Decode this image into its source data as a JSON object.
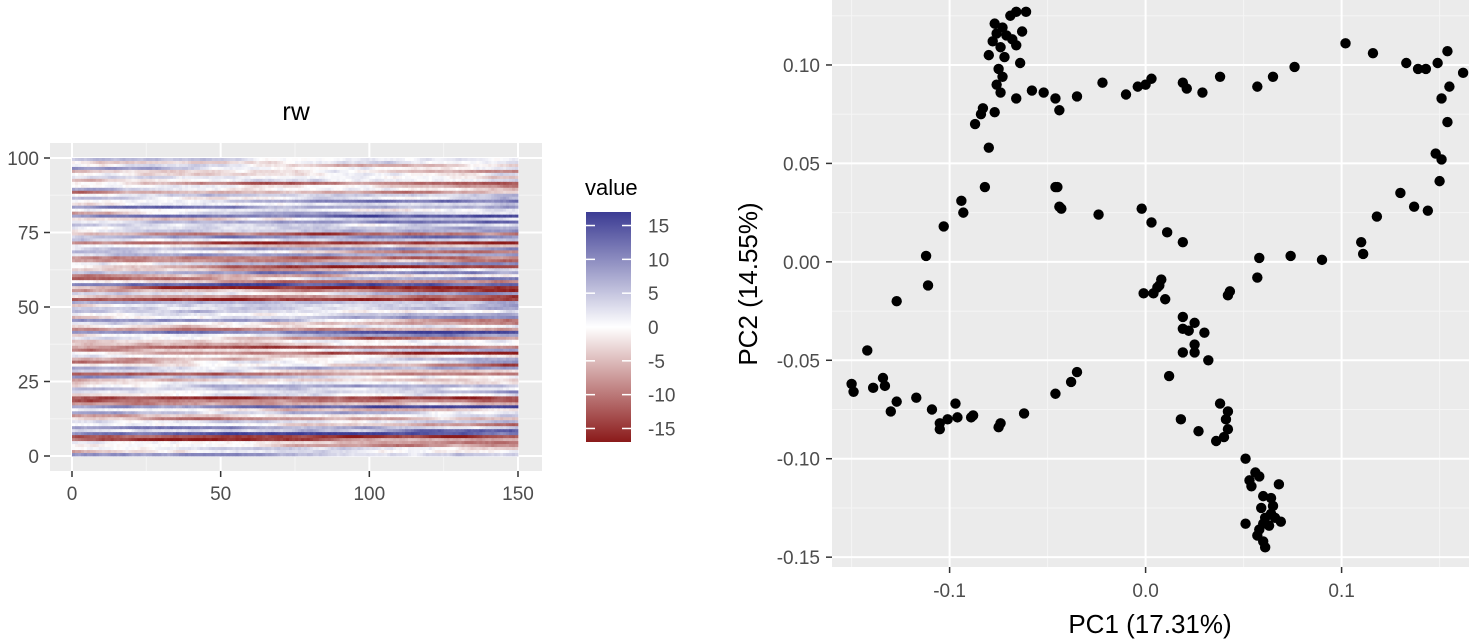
{
  "chart_data": [
    {
      "type": "heatmap",
      "title": "rw",
      "xlabel": "",
      "ylabel": "",
      "xlim": [
        0,
        150
      ],
      "ylim": [
        0,
        100
      ],
      "x_ticks": [
        0,
        50,
        100,
        150
      ],
      "y_ticks": [
        0,
        25,
        50,
        75,
        100
      ],
      "rows": 100,
      "columns": 150,
      "value_range": [
        -17,
        17
      ],
      "legend": {
        "title": "value",
        "ticks": [
          15,
          10,
          5,
          0,
          -5,
          -10,
          -15
        ],
        "colors": {
          "high": "#3b3b93",
          "mid": "#ffffff",
          "low": "#8b1a1a"
        },
        "placement": "right"
      },
      "grid": true,
      "panel_background": "#ebebeb"
    },
    {
      "type": "scatter",
      "xlabel": "PC1 (17.31%)",
      "ylabel": "PC2 (14.55%)",
      "xlim": [
        -0.16,
        0.165
      ],
      "ylim": [
        -0.155,
        0.133
      ],
      "x_ticks": [
        -0.1,
        0.0,
        0.1
      ],
      "x_tick_labels": [
        "-0.1",
        "0.0",
        "0.1"
      ],
      "y_ticks": [
        0.1,
        0.05,
        0.0,
        -0.05,
        -0.1,
        -0.15
      ],
      "y_tick_labels": [
        "0.10",
        "0.05",
        "0.00",
        "-0.05",
        "-0.10",
        "-0.15"
      ],
      "grid": true,
      "point_color": "#000000",
      "panel_background": "#ebebeb",
      "points": [
        [
          -0.066,
          0.127
        ],
        [
          -0.061,
          0.127
        ],
        [
          -0.069,
          0.125
        ],
        [
          -0.077,
          0.121
        ],
        [
          -0.073,
          0.119
        ],
        [
          -0.063,
          0.117
        ],
        [
          -0.076,
          0.116
        ],
        [
          -0.071,
          0.115
        ],
        [
          -0.068,
          0.113
        ],
        [
          -0.078,
          0.112
        ],
        [
          -0.066,
          0.11
        ],
        [
          -0.074,
          0.109
        ],
        [
          -0.08,
          0.105
        ],
        [
          -0.072,
          0.104
        ],
        [
          -0.064,
          0.101
        ],
        [
          -0.075,
          0.098
        ],
        [
          -0.073,
          0.094
        ],
        [
          -0.076,
          0.09
        ],
        [
          -0.074,
          0.086
        ],
        [
          -0.066,
          0.083
        ],
        [
          -0.058,
          0.087
        ],
        [
          -0.052,
          0.086
        ],
        [
          -0.046,
          0.083
        ],
        [
          -0.044,
          0.077
        ],
        [
          -0.035,
          0.084
        ],
        [
          -0.022,
          0.091
        ],
        [
          -0.01,
          0.085
        ],
        [
          -0.004,
          0.089
        ],
        [
          0.0,
          0.09
        ],
        [
          0.003,
          0.093
        ],
        [
          0.019,
          0.091
        ],
        [
          0.021,
          0.088
        ],
        [
          0.029,
          0.086
        ],
        [
          0.038,
          0.094
        ],
        [
          0.057,
          0.089
        ],
        [
          0.065,
          0.094
        ],
        [
          0.076,
          0.099
        ],
        [
          0.102,
          0.111
        ],
        [
          0.116,
          0.106
        ],
        [
          0.133,
          0.101
        ],
        [
          0.139,
          0.098
        ],
        [
          0.143,
          0.098
        ],
        [
          0.149,
          0.101
        ],
        [
          0.154,
          0.107
        ],
        [
          0.162,
          0.096
        ],
        [
          0.155,
          0.089
        ],
        [
          0.151,
          0.083
        ],
        [
          0.154,
          0.071
        ],
        [
          0.148,
          0.055
        ],
        [
          0.151,
          0.052
        ],
        [
          0.15,
          0.041
        ],
        [
          0.13,
          0.035
        ],
        [
          0.137,
          0.028
        ],
        [
          0.144,
          0.026
        ],
        [
          0.118,
          0.023
        ],
        [
          0.11,
          0.01
        ],
        [
          0.111,
          0.004
        ],
        [
          0.09,
          0.001
        ],
        [
          0.074,
          0.003
        ],
        [
          0.058,
          0.002
        ],
        [
          0.057,
          -0.008
        ],
        [
          0.043,
          -0.015
        ],
        [
          0.042,
          -0.017
        ],
        [
          0.019,
          0.01
        ],
        [
          0.011,
          0.015
        ],
        [
          0.003,
          0.02
        ],
        [
          -0.002,
          0.027
        ],
        [
          -0.024,
          0.024
        ],
        [
          -0.043,
          0.027
        ],
        [
          -0.044,
          0.028
        ],
        [
          -0.046,
          0.038
        ],
        [
          -0.045,
          0.038
        ],
        [
          -0.08,
          0.058
        ],
        [
          -0.082,
          0.038
        ],
        [
          -0.083,
          0.078
        ],
        [
          -0.084,
          0.075
        ],
        [
          -0.077,
          0.076
        ],
        [
          -0.087,
          0.07
        ],
        [
          -0.093,
          0.025
        ],
        [
          -0.094,
          0.031
        ],
        [
          -0.103,
          0.018
        ],
        [
          -0.112,
          0.003
        ],
        [
          -0.111,
          -0.012
        ],
        [
          -0.127,
          -0.02
        ],
        [
          -0.142,
          -0.045
        ],
        [
          -0.15,
          -0.062
        ],
        [
          -0.149,
          -0.066
        ],
        [
          -0.139,
          -0.064
        ],
        [
          -0.134,
          -0.059
        ],
        [
          -0.133,
          -0.063
        ],
        [
          -0.127,
          -0.071
        ],
        [
          -0.13,
          -0.076
        ],
        [
          -0.117,
          -0.069
        ],
        [
          -0.109,
          -0.075
        ],
        [
          -0.105,
          -0.082
        ],
        [
          -0.105,
          -0.085
        ],
        [
          -0.101,
          -0.08
        ],
        [
          -0.097,
          -0.072
        ],
        [
          -0.096,
          -0.079
        ],
        [
          -0.089,
          -0.079
        ],
        [
          -0.088,
          -0.078
        ],
        [
          -0.075,
          -0.084
        ],
        [
          -0.074,
          -0.082
        ],
        [
          -0.062,
          -0.077
        ],
        [
          -0.046,
          -0.067
        ],
        [
          -0.038,
          -0.061
        ],
        [
          -0.035,
          -0.056
        ],
        [
          0.004,
          -0.016
        ],
        [
          -0.001,
          -0.016
        ],
        [
          0.006,
          -0.013
        ],
        [
          0.008,
          -0.009
        ],
        [
          0.007,
          -0.012
        ],
        [
          0.01,
          -0.019
        ],
        [
          0.019,
          -0.028
        ],
        [
          0.025,
          -0.031
        ],
        [
          0.03,
          -0.036
        ],
        [
          0.022,
          -0.035
        ],
        [
          0.019,
          -0.034
        ],
        [
          0.025,
          -0.042
        ],
        [
          0.025,
          -0.046
        ],
        [
          0.019,
          -0.046
        ],
        [
          0.032,
          -0.05
        ],
        [
          0.012,
          -0.058
        ],
        [
          0.038,
          -0.072
        ],
        [
          0.042,
          -0.076
        ],
        [
          0.041,
          -0.08
        ],
        [
          0.042,
          -0.085
        ],
        [
          0.036,
          -0.091
        ],
        [
          0.04,
          -0.089
        ],
        [
          0.018,
          -0.08
        ],
        [
          0.027,
          -0.086
        ],
        [
          0.051,
          -0.1
        ],
        [
          0.056,
          -0.107
        ],
        [
          0.058,
          -0.109
        ],
        [
          0.053,
          -0.111
        ],
        [
          0.054,
          -0.114
        ],
        [
          0.068,
          -0.113
        ],
        [
          0.06,
          -0.119
        ],
        [
          0.064,
          -0.12
        ],
        [
          0.065,
          -0.124
        ],
        [
          0.059,
          -0.125
        ],
        [
          0.064,
          -0.128
        ],
        [
          0.061,
          -0.13
        ],
        [
          0.066,
          -0.13
        ],
        [
          0.069,
          -0.132
        ],
        [
          0.06,
          -0.133
        ],
        [
          0.051,
          -0.133
        ],
        [
          0.063,
          -0.134
        ],
        [
          0.058,
          -0.136
        ],
        [
          0.057,
          -0.139
        ],
        [
          0.06,
          -0.142
        ],
        [
          0.061,
          -0.145
        ]
      ]
    }
  ]
}
